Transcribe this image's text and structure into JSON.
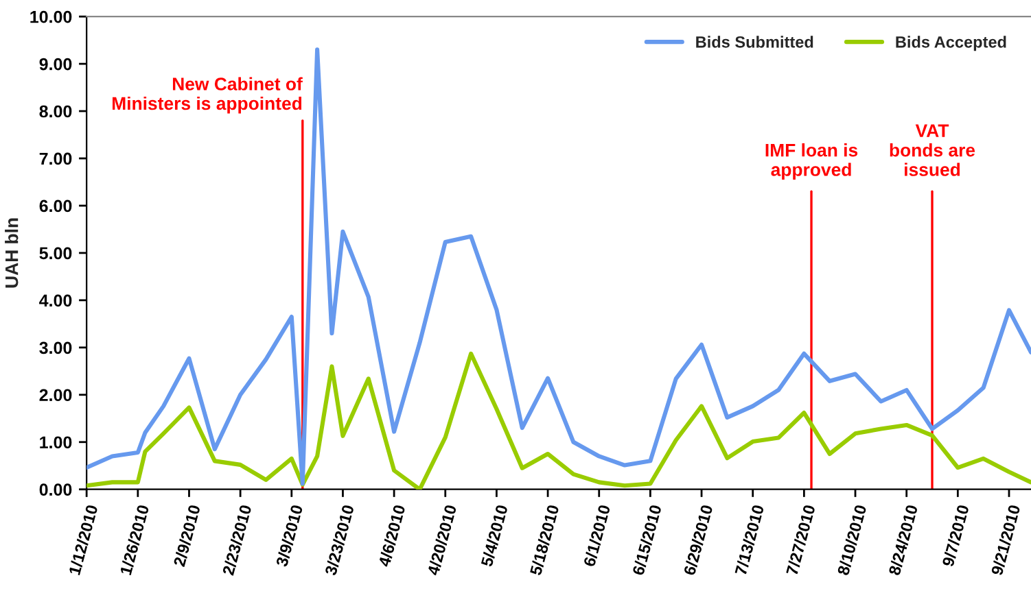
{
  "chart_data": {
    "type": "line",
    "ylabel": "UAH bln",
    "x": [
      "2010-01-12",
      "2010-01-19",
      "2010-01-26",
      "2010-01-28",
      "2010-02-02",
      "2010-02-09",
      "2010-02-16",
      "2010-02-23",
      "2010-03-02",
      "2010-03-09",
      "2010-03-12",
      "2010-03-16",
      "2010-03-20",
      "2010-03-23",
      "2010-03-30",
      "2010-04-06",
      "2010-04-13",
      "2010-04-20",
      "2010-04-27",
      "2010-05-04",
      "2010-05-11",
      "2010-05-18",
      "2010-05-25",
      "2010-06-01",
      "2010-06-08",
      "2010-06-15",
      "2010-06-22",
      "2010-06-29",
      "2010-07-06",
      "2010-07-13",
      "2010-07-20",
      "2010-07-27",
      "2010-08-03",
      "2010-08-10",
      "2010-08-17",
      "2010-08-24",
      "2010-08-31",
      "2010-09-07",
      "2010-09-14",
      "2010-09-21",
      "2010-09-27"
    ],
    "series": [
      {
        "name": "Bids Submitted",
        "color": "#6699ee",
        "values": [
          0.46,
          0.7,
          0.78,
          1.2,
          1.76,
          2.77,
          0.85,
          2.0,
          2.75,
          3.65,
          0.12,
          9.3,
          3.3,
          5.45,
          4.07,
          1.22,
          3.1,
          5.23,
          5.35,
          3.8,
          1.3,
          2.35,
          1.0,
          0.7,
          0.51,
          0.6,
          2.34,
          3.06,
          1.52,
          1.76,
          2.1,
          2.87,
          2.29,
          2.44,
          1.86,
          2.1,
          1.28,
          1.67,
          2.15,
          3.79,
          2.9
        ]
      },
      {
        "name": "Bids Accepted",
        "color": "#99cc00",
        "values": [
          0.08,
          0.15,
          0.15,
          0.8,
          1.18,
          1.73,
          0.6,
          0.52,
          0.2,
          0.65,
          0.1,
          0.7,
          2.6,
          1.13,
          2.34,
          0.4,
          0.0,
          1.1,
          2.87,
          1.7,
          0.45,
          0.75,
          0.32,
          0.15,
          0.08,
          0.12,
          1.04,
          1.76,
          0.66,
          1.01,
          1.09,
          1.62,
          0.75,
          1.18,
          1.28,
          1.36,
          1.14,
          0.46,
          0.65,
          0.37,
          0.15
        ]
      }
    ],
    "xlim": [
      "2010-01-12",
      "2010-09-27"
    ],
    "xticks": [
      {
        "value": "2010-01-12",
        "label": "1/12/2010"
      },
      {
        "value": "2010-01-26",
        "label": "1/26/2010"
      },
      {
        "value": "2010-02-09",
        "label": "2/9/2010"
      },
      {
        "value": "2010-02-23",
        "label": "2/23/2010"
      },
      {
        "value": "2010-03-09",
        "label": "3/9/2010"
      },
      {
        "value": "2010-03-23",
        "label": "3/23/2010"
      },
      {
        "value": "2010-04-06",
        "label": "4/6/2010"
      },
      {
        "value": "2010-04-20",
        "label": "4/20/2010"
      },
      {
        "value": "2010-05-04",
        "label": "5/4/2010"
      },
      {
        "value": "2010-05-18",
        "label": "5/18/2010"
      },
      {
        "value": "2010-06-01",
        "label": "6/1/2010"
      },
      {
        "value": "2010-06-15",
        "label": "6/15/2010"
      },
      {
        "value": "2010-06-29",
        "label": "6/29/2010"
      },
      {
        "value": "2010-07-13",
        "label": "7/13/2010"
      },
      {
        "value": "2010-07-27",
        "label": "7/27/2010"
      },
      {
        "value": "2010-08-10",
        "label": "8/10/2010"
      },
      {
        "value": "2010-08-24",
        "label": "8/24/2010"
      },
      {
        "value": "2010-09-07",
        "label": "9/7/2010"
      },
      {
        "value": "2010-09-21",
        "label": "9/21/2010"
      }
    ],
    "ylim": [
      0,
      10
    ],
    "yticks": [
      {
        "value": 0,
        "label": "0.00"
      },
      {
        "value": 1,
        "label": "1.00"
      },
      {
        "value": 2,
        "label": "2.00"
      },
      {
        "value": 3,
        "label": "3.00"
      },
      {
        "value": 4,
        "label": "4.00"
      },
      {
        "value": 5,
        "label": "5.00"
      },
      {
        "value": 6,
        "label": "6.00"
      },
      {
        "value": 7,
        "label": "7.00"
      },
      {
        "value": 8,
        "label": "8.00"
      },
      {
        "value": 9,
        "label": "9.00"
      },
      {
        "value": 10,
        "label": "10.00"
      }
    ],
    "ref_lines": [
      {
        "axis": "x",
        "value": "2010-03-12",
        "label": "New Cabinet of\nMinisters is appointed",
        "color": "#ff0000"
      },
      {
        "axis": "x",
        "value": "2010-07-29",
        "label": "IMF loan is\napproved",
        "color": "#ff0000"
      },
      {
        "axis": "x",
        "value": "2010-08-31",
        "label": "VAT\nbonds are\nissued",
        "color": "#ff0000"
      }
    ],
    "grid": false,
    "legend": "top right",
    "marker": "none",
    "line_style": "solid"
  }
}
